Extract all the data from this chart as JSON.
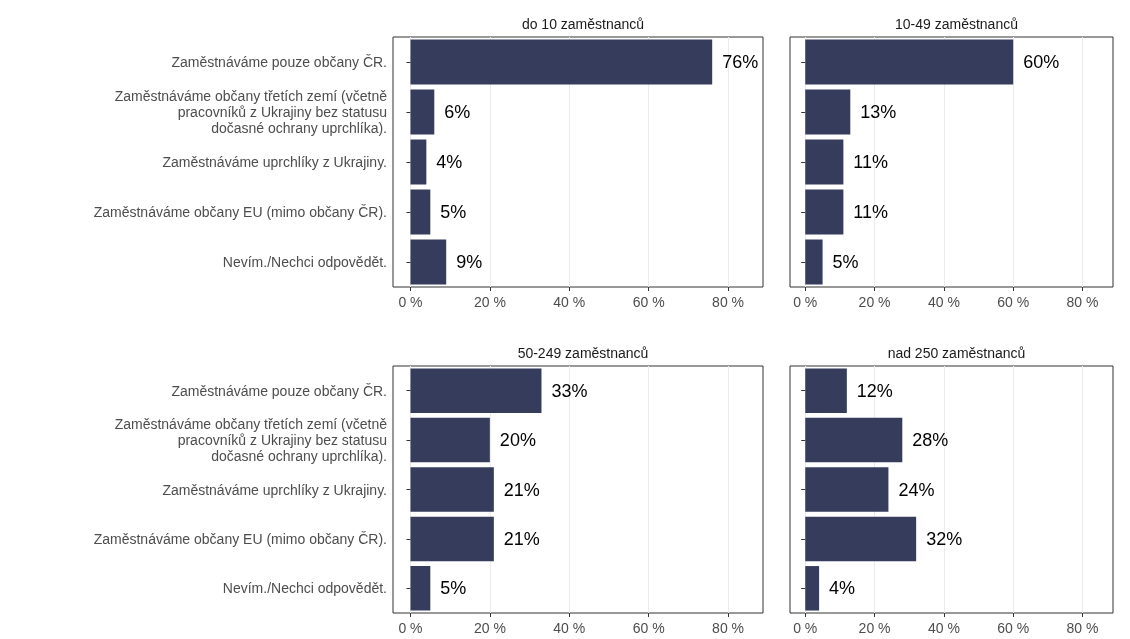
{
  "chart_data": [
    {
      "type": "bar",
      "orientation": "horizontal",
      "title": "do 10 zaměstnanců",
      "categories": [
        "Zaměstnáváme pouze občany ČR.",
        "Zaměstnáváme občany třetích zemí (včetně\npracovníků z Ukrajiny bez statusu\ndočasné ochrany uprchlíka).",
        "Zaměstnáváme uprchlíky z Ukrajiny.",
        "Zaměstnáváme občany EU (mimo občany ČR).",
        "Nevím./Nechci odpovědět."
      ],
      "values": [
        76,
        6,
        4,
        5,
        9
      ],
      "value_labels": [
        "76%",
        "6%",
        "4%",
        "5%",
        "9%"
      ],
      "color": "#353c5c",
      "xlim": [
        -4.4,
        88.8
      ],
      "xticks": [
        {
          "value": 0,
          "label": "0 %"
        },
        {
          "value": 20,
          "label": "20 %"
        },
        {
          "value": 40,
          "label": "40 %"
        },
        {
          "value": 60,
          "label": "60 %"
        },
        {
          "value": 80,
          "label": "80 %"
        }
      ],
      "grid": "x"
    },
    {
      "type": "bar",
      "orientation": "horizontal",
      "title": "10-49 zaměstnanců",
      "categories": [
        null,
        null,
        null,
        null,
        null
      ],
      "values": [
        60,
        13,
        11,
        11,
        5
      ],
      "value_labels": [
        "60%",
        "13%",
        "11%",
        "11%",
        "5%"
      ],
      "color": "#353c5c",
      "xlim": [
        -4.4,
        88.8
      ],
      "xticks": [
        {
          "value": 0,
          "label": "0 %"
        },
        {
          "value": 20,
          "label": "20 %"
        },
        {
          "value": 40,
          "label": "40 %"
        },
        {
          "value": 60,
          "label": "60 %"
        },
        {
          "value": 80,
          "label": "80 %"
        }
      ],
      "grid": "x",
      "tick_labels": "x"
    },
    {
      "type": "bar",
      "orientation": "horizontal",
      "title": "50-249 zaměstnanců",
      "categories": [
        "Zaměstnáváme pouze občany ČR.",
        "Zaměstnáváme občany třetích zemí (včetně\npracovníků z Ukrajiny bez statusu\ndočasné ochrany uprchlíka).",
        "Zaměstnáváme uprchlíky z Ukrajiny.",
        "Zaměstnáváme občany EU (mimo občany ČR).",
        "Nevím./Nechci odpovědět."
      ],
      "values": [
        33,
        20,
        21,
        21,
        5
      ],
      "value_labels": [
        "33%",
        "20%",
        "21%",
        "21%",
        "5%"
      ],
      "color": "#353c5c",
      "xlim": [
        -4.4,
        88.8
      ],
      "xticks": [
        {
          "value": 0,
          "label": "0 %"
        },
        {
          "value": 20,
          "label": "20 %"
        },
        {
          "value": 40,
          "label": "40 %"
        },
        {
          "value": 60,
          "label": "60 %"
        },
        {
          "value": 80,
          "label": "80 %"
        }
      ],
      "grid": "x"
    },
    {
      "type": "bar",
      "orientation": "horizontal",
      "title": "nad 250 zaměstnanců",
      "categories": [
        null,
        null,
        null,
        null,
        null
      ],
      "values": [
        12,
        28,
        24,
        32,
        4
      ],
      "value_labels": [
        "12%",
        "28%",
        "24%",
        "32%",
        "4%"
      ],
      "color": "#353c5c",
      "xlim": [
        -4.4,
        88.8
      ],
      "xticks": [
        {
          "value": 0,
          "label": "0 %"
        },
        {
          "value": 20,
          "label": "20 %"
        },
        {
          "value": 40,
          "label": "40 %"
        },
        {
          "value": 60,
          "label": "60 %"
        },
        {
          "value": 80,
          "label": "80 %"
        }
      ],
      "grid": "x",
      "tick_labels": "x"
    }
  ]
}
